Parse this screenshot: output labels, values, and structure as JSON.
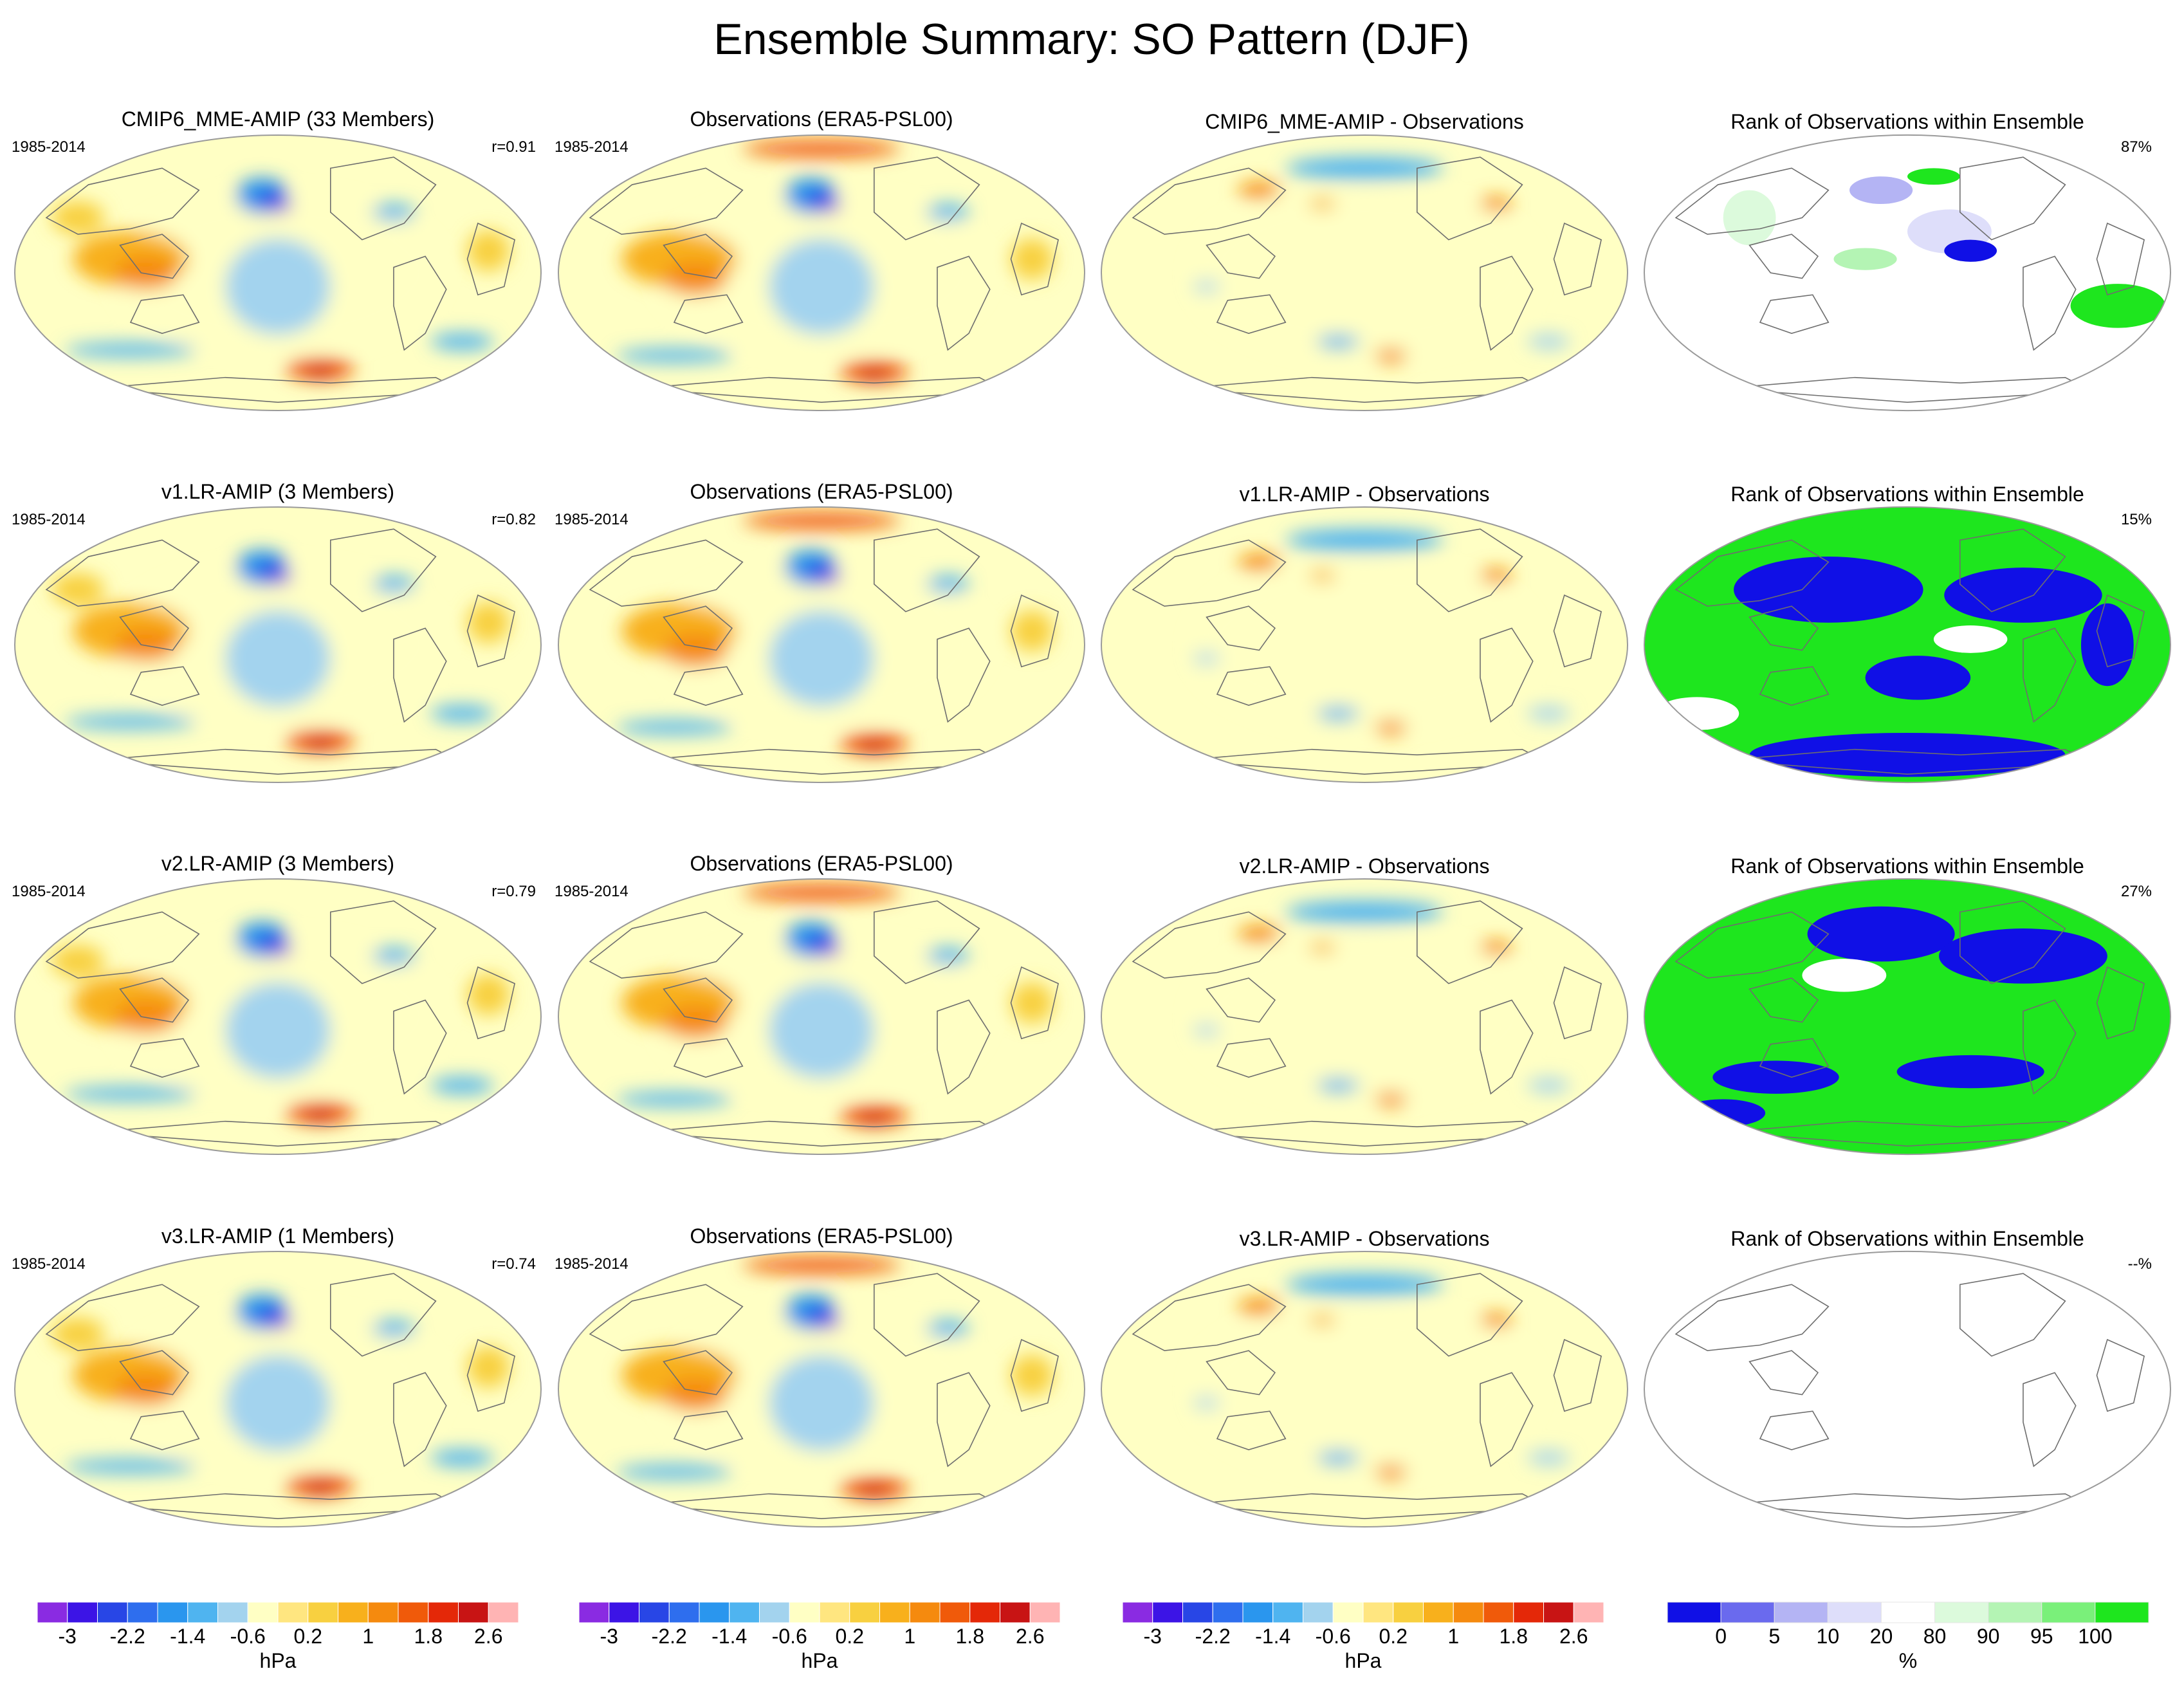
{
  "title": "Ensemble Summary: SO Pattern (DJF)",
  "period": "1985-2014",
  "unit_label": "hPa",
  "rank_unit_label": "%",
  "colors": {
    "background": "#ffffff",
    "coast": "#6e6e6e",
    "map_outline": "#9a9a9a",
    "rank_low": "#1010e6",
    "rank_mid_low": "#6a6aee",
    "rank_light_low": "#b4b4f4",
    "rank_faint_low": "#dedefa",
    "rank_neutral": "#ffffff",
    "rank_faint_high": "#dcfadc",
    "rank_light_high": "#b4f4b4",
    "rank_mid_high": "#7af07a",
    "rank_high": "#1ee61e"
  },
  "hpa_colorbar": {
    "colors": [
      "#8a2be2",
      "#3c14e6",
      "#2846e6",
      "#2e6eee",
      "#2a96ee",
      "#4fb4f0",
      "#a3d3ee",
      "#ffffc4",
      "#ffe680",
      "#f8d040",
      "#f8b01c",
      "#f58a0e",
      "#f05a0a",
      "#e42808",
      "#c81414",
      "#ffb4b4"
    ],
    "tick_labels": [
      "-3",
      "-2.2",
      "-1.4",
      "-0.6",
      "0.2",
      "1",
      "1.8",
      "2.6"
    ]
  },
  "rank_colorbar": {
    "colors": [
      "#1010e6",
      "#6a6aee",
      "#b4b4f4",
      "#dedefa",
      "#ffffff",
      "#dcfadc",
      "#b4f4b4",
      "#7af07a",
      "#1ee61e"
    ],
    "tick_labels": [
      "0",
      "5",
      "10",
      "20",
      "80",
      "90",
      "95",
      "100"
    ]
  },
  "rows": [
    {
      "model_title": "CMIP6_MME-AMIP (33 Members)",
      "correlation": "r=0.91",
      "obs_title": "Observations (ERA5-PSL00)",
      "diff_title": "CMIP6_MME-AMIP - Observations",
      "rank_title": "Rank of Observations within Ensemble",
      "rank_percent": "87%"
    },
    {
      "model_title": "v1.LR-AMIP (3 Members)",
      "correlation": "r=0.82",
      "obs_title": "Observations (ERA5-PSL00)",
      "diff_title": "v1.LR-AMIP - Observations",
      "rank_title": "Rank of Observations within Ensemble",
      "rank_percent": "15%"
    },
    {
      "model_title": "v2.LR-AMIP (3 Members)",
      "correlation": "r=0.79",
      "obs_title": "Observations (ERA5-PSL00)",
      "diff_title": "v2.LR-AMIP - Observations",
      "rank_title": "Rank of Observations within Ensemble",
      "rank_percent": "27%"
    },
    {
      "model_title": "v3.LR-AMIP (1 Members)",
      "correlation": "r=0.74",
      "obs_title": "Observations (ERA5-PSL00)",
      "diff_title": "v3.LR-AMIP - Observations",
      "rank_title": "Rank of Observations within Ensemble",
      "rank_percent": "--%"
    }
  ],
  "chart_data": {
    "type": "heatmap",
    "title": "Ensemble Summary: SO Pattern (DJF)",
    "panel_grid": "4 rows x 4 columns of global maps",
    "columns": [
      "model pattern",
      "observations",
      "model - observations",
      "rank of observations within ensemble"
    ],
    "variable_unit": "hPa",
    "contour_levels": [
      -3,
      -2.6,
      -2.2,
      -1.8,
      -1.4,
      -1,
      -0.6,
      -0.2,
      0.2,
      0.6,
      1,
      1.4,
      1.8,
      2.2,
      2.6,
      3
    ],
    "rank_levels": [
      0,
      5,
      10,
      20,
      80,
      90,
      95,
      100
    ],
    "pattern_correlations": [
      {
        "model": "CMIP6_MME-AMIP",
        "members": 33,
        "r": 0.91,
        "rank_percent": 87
      },
      {
        "model": "v1.LR-AMIP",
        "members": 3,
        "r": 0.82,
        "rank_percent": 15
      },
      {
        "model": "v2.LR-AMIP",
        "members": 3,
        "r": 0.79,
        "rank_percent": 27
      },
      {
        "model": "v3.LR-AMIP",
        "members": 1,
        "r": 0.74,
        "rank_percent": null
      }
    ]
  }
}
